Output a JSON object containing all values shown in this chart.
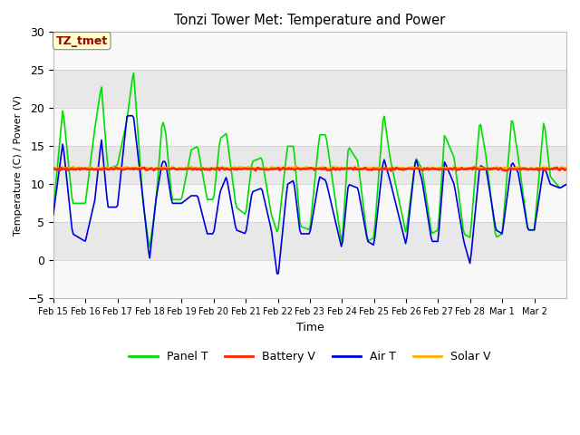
{
  "title": "Tonzi Tower Met: Temperature and Power",
  "xlabel": "Time",
  "ylabel": "Temperature (C) / Power (V)",
  "ylim": [
    -5,
    30
  ],
  "yticks": [
    -5,
    0,
    5,
    10,
    15,
    20,
    25,
    30
  ],
  "annotation_text": "TZ_tmet",
  "annotation_color": "#990000",
  "annotation_bg": "#ffffcc",
  "bg_band_light": "#e8e8e8",
  "bg_band_white": "#f8f8f8",
  "legend": [
    "Panel T",
    "Battery V",
    "Air T",
    "Solar V"
  ],
  "legend_colors": [
    "#00dd00",
    "#ff2200",
    "#0000dd",
    "#ffaa00"
  ],
  "x_tick_labels": [
    "Feb 15",
    "Feb 16",
    "Feb 17",
    "Feb 18",
    "Feb 19",
    "Feb 20",
    "Feb 21",
    "Feb 22",
    "Feb 23",
    "Feb 24",
    "Feb 25",
    "Feb 26",
    "Feb 27",
    "Feb 28",
    "Mar 1",
    "Mar 2"
  ],
  "num_days": 16,
  "battery_v": 12.0,
  "solar_v": 12.1
}
